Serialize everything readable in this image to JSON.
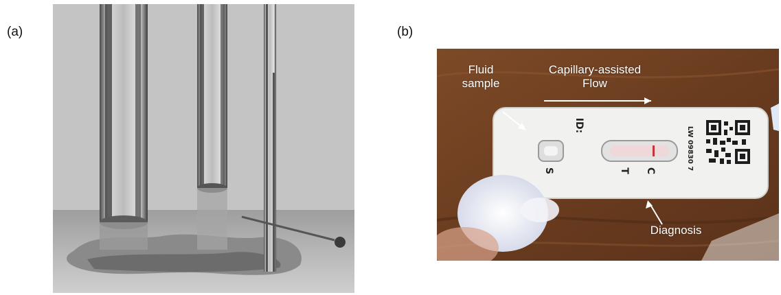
{
  "panels": {
    "a": {
      "label": "(a)"
    },
    "b": {
      "label": "(b)",
      "annotations": {
        "fluid_sample": [
          "Fluid",
          "sample"
        ],
        "flow": [
          "Capillary-assisted",
          "Flow"
        ],
        "diagnosis": "Diagnosis"
      },
      "cassette": {
        "id_label": "ID:",
        "letter_s": "S",
        "letter_t": "T",
        "letter_c": "C",
        "lot_code": "LW 09830 7"
      }
    }
  },
  "colors": {
    "annotation_text": "#ffffff",
    "wood": "#6b3f22",
    "cassette": "#f1f1ef",
    "control_line": "#c0363f"
  }
}
